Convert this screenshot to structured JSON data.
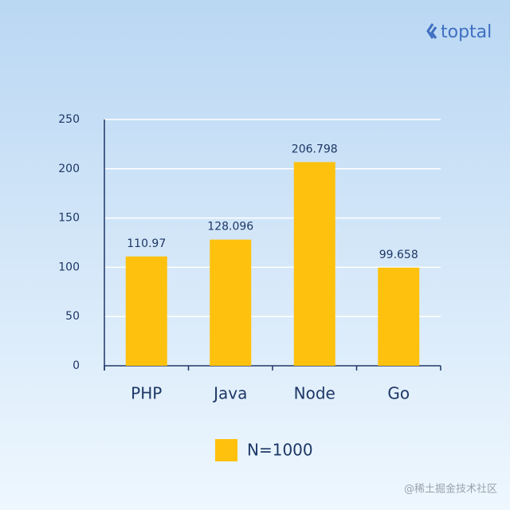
{
  "brand": "toptal",
  "watermark": "@稀土掘金技术社区",
  "chart_data": {
    "type": "bar",
    "categories": [
      "PHP",
      "Java",
      "Node",
      "Go"
    ],
    "series": [
      {
        "name": "N=1000",
        "color": "#fec10e",
        "values": [
          110.97,
          128.096,
          206.798,
          99.658
        ]
      }
    ],
    "ylim": [
      0,
      250
    ],
    "yticks": [
      0,
      50,
      100,
      150,
      200,
      250
    ],
    "grid": true,
    "legend": "bottom"
  }
}
